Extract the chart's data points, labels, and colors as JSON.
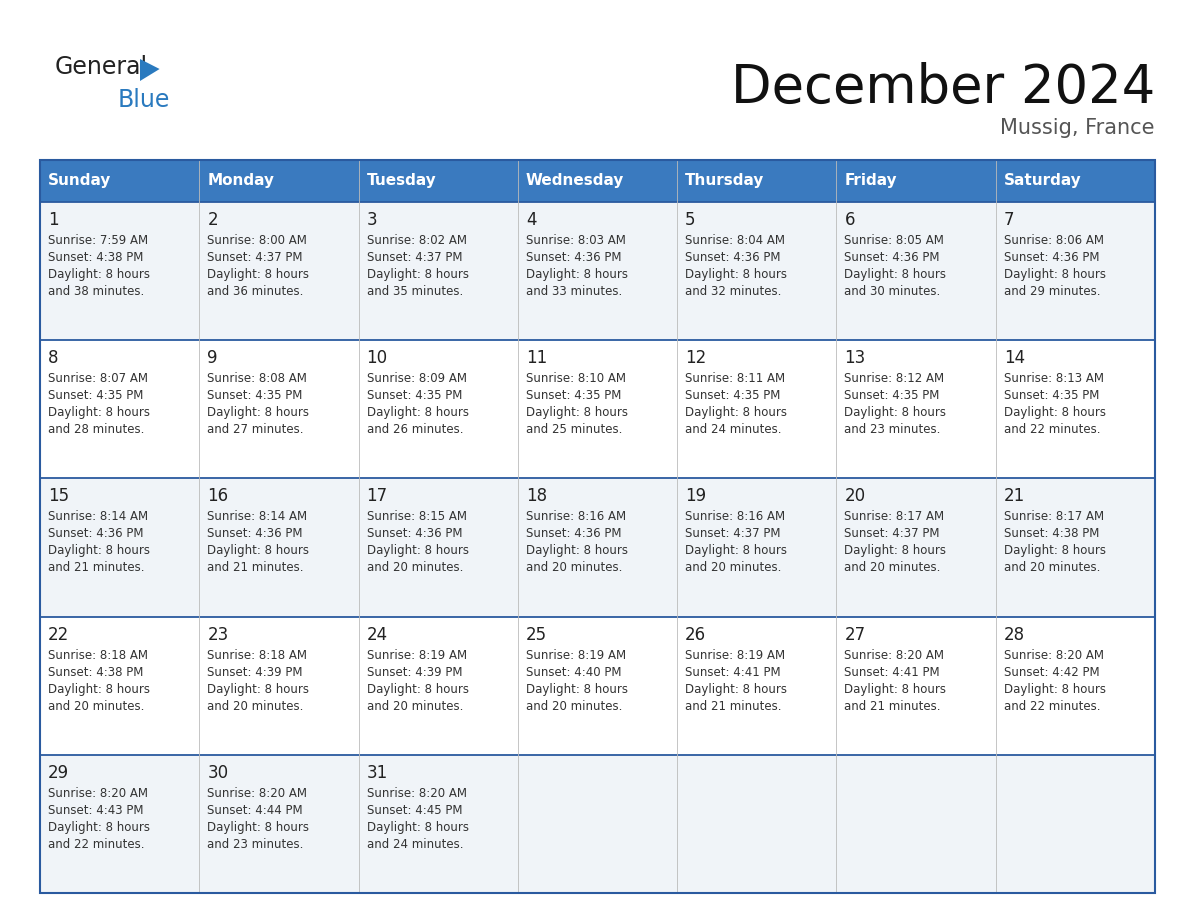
{
  "title": "December 2024",
  "subtitle": "Mussig, France",
  "header_color": "#3a7abf",
  "header_text_color": "#ffffff",
  "day_names": [
    "Sunday",
    "Monday",
    "Tuesday",
    "Wednesday",
    "Thursday",
    "Friday",
    "Saturday"
  ],
  "row_bg_colors": [
    "#f0f4f8",
    "#ffffff"
  ],
  "border_color": "#2a5a9f",
  "text_color": "#333333",
  "day_number_color": "#222222",
  "logo_color1": "#222222",
  "logo_color2": "#2a7abf",
  "calendar_data": [
    [
      {
        "day": 1,
        "sunrise": "7:59 AM",
        "sunset": "4:38 PM",
        "daylight_line1": "Daylight: 8 hours",
        "daylight_line2": "and 38 minutes."
      },
      {
        "day": 2,
        "sunrise": "8:00 AM",
        "sunset": "4:37 PM",
        "daylight_line1": "Daylight: 8 hours",
        "daylight_line2": "and 36 minutes."
      },
      {
        "day": 3,
        "sunrise": "8:02 AM",
        "sunset": "4:37 PM",
        "daylight_line1": "Daylight: 8 hours",
        "daylight_line2": "and 35 minutes."
      },
      {
        "day": 4,
        "sunrise": "8:03 AM",
        "sunset": "4:36 PM",
        "daylight_line1": "Daylight: 8 hours",
        "daylight_line2": "and 33 minutes."
      },
      {
        "day": 5,
        "sunrise": "8:04 AM",
        "sunset": "4:36 PM",
        "daylight_line1": "Daylight: 8 hours",
        "daylight_line2": "and 32 minutes."
      },
      {
        "day": 6,
        "sunrise": "8:05 AM",
        "sunset": "4:36 PM",
        "daylight_line1": "Daylight: 8 hours",
        "daylight_line2": "and 30 minutes."
      },
      {
        "day": 7,
        "sunrise": "8:06 AM",
        "sunset": "4:36 PM",
        "daylight_line1": "Daylight: 8 hours",
        "daylight_line2": "and 29 minutes."
      }
    ],
    [
      {
        "day": 8,
        "sunrise": "8:07 AM",
        "sunset": "4:35 PM",
        "daylight_line1": "Daylight: 8 hours",
        "daylight_line2": "and 28 minutes."
      },
      {
        "day": 9,
        "sunrise": "8:08 AM",
        "sunset": "4:35 PM",
        "daylight_line1": "Daylight: 8 hours",
        "daylight_line2": "and 27 minutes."
      },
      {
        "day": 10,
        "sunrise": "8:09 AM",
        "sunset": "4:35 PM",
        "daylight_line1": "Daylight: 8 hours",
        "daylight_line2": "and 26 minutes."
      },
      {
        "day": 11,
        "sunrise": "8:10 AM",
        "sunset": "4:35 PM",
        "daylight_line1": "Daylight: 8 hours",
        "daylight_line2": "and 25 minutes."
      },
      {
        "day": 12,
        "sunrise": "8:11 AM",
        "sunset": "4:35 PM",
        "daylight_line1": "Daylight: 8 hours",
        "daylight_line2": "and 24 minutes."
      },
      {
        "day": 13,
        "sunrise": "8:12 AM",
        "sunset": "4:35 PM",
        "daylight_line1": "Daylight: 8 hours",
        "daylight_line2": "and 23 minutes."
      },
      {
        "day": 14,
        "sunrise": "8:13 AM",
        "sunset": "4:35 PM",
        "daylight_line1": "Daylight: 8 hours",
        "daylight_line2": "and 22 minutes."
      }
    ],
    [
      {
        "day": 15,
        "sunrise": "8:14 AM",
        "sunset": "4:36 PM",
        "daylight_line1": "Daylight: 8 hours",
        "daylight_line2": "and 21 minutes."
      },
      {
        "day": 16,
        "sunrise": "8:14 AM",
        "sunset": "4:36 PM",
        "daylight_line1": "Daylight: 8 hours",
        "daylight_line2": "and 21 minutes."
      },
      {
        "day": 17,
        "sunrise": "8:15 AM",
        "sunset": "4:36 PM",
        "daylight_line1": "Daylight: 8 hours",
        "daylight_line2": "and 20 minutes."
      },
      {
        "day": 18,
        "sunrise": "8:16 AM",
        "sunset": "4:36 PM",
        "daylight_line1": "Daylight: 8 hours",
        "daylight_line2": "and 20 minutes."
      },
      {
        "day": 19,
        "sunrise": "8:16 AM",
        "sunset": "4:37 PM",
        "daylight_line1": "Daylight: 8 hours",
        "daylight_line2": "and 20 minutes."
      },
      {
        "day": 20,
        "sunrise": "8:17 AM",
        "sunset": "4:37 PM",
        "daylight_line1": "Daylight: 8 hours",
        "daylight_line2": "and 20 minutes."
      },
      {
        "day": 21,
        "sunrise": "8:17 AM",
        "sunset": "4:38 PM",
        "daylight_line1": "Daylight: 8 hours",
        "daylight_line2": "and 20 minutes."
      }
    ],
    [
      {
        "day": 22,
        "sunrise": "8:18 AM",
        "sunset": "4:38 PM",
        "daylight_line1": "Daylight: 8 hours",
        "daylight_line2": "and 20 minutes."
      },
      {
        "day": 23,
        "sunrise": "8:18 AM",
        "sunset": "4:39 PM",
        "daylight_line1": "Daylight: 8 hours",
        "daylight_line2": "and 20 minutes."
      },
      {
        "day": 24,
        "sunrise": "8:19 AM",
        "sunset": "4:39 PM",
        "daylight_line1": "Daylight: 8 hours",
        "daylight_line2": "and 20 minutes."
      },
      {
        "day": 25,
        "sunrise": "8:19 AM",
        "sunset": "4:40 PM",
        "daylight_line1": "Daylight: 8 hours",
        "daylight_line2": "and 20 minutes."
      },
      {
        "day": 26,
        "sunrise": "8:19 AM",
        "sunset": "4:41 PM",
        "daylight_line1": "Daylight: 8 hours",
        "daylight_line2": "and 21 minutes."
      },
      {
        "day": 27,
        "sunrise": "8:20 AM",
        "sunset": "4:41 PM",
        "daylight_line1": "Daylight: 8 hours",
        "daylight_line2": "and 21 minutes."
      },
      {
        "day": 28,
        "sunrise": "8:20 AM",
        "sunset": "4:42 PM",
        "daylight_line1": "Daylight: 8 hours",
        "daylight_line2": "and 22 minutes."
      }
    ],
    [
      {
        "day": 29,
        "sunrise": "8:20 AM",
        "sunset": "4:43 PM",
        "daylight_line1": "Daylight: 8 hours",
        "daylight_line2": "and 22 minutes."
      },
      {
        "day": 30,
        "sunrise": "8:20 AM",
        "sunset": "4:44 PM",
        "daylight_line1": "Daylight: 8 hours",
        "daylight_line2": "and 23 minutes."
      },
      {
        "day": 31,
        "sunrise": "8:20 AM",
        "sunset": "4:45 PM",
        "daylight_line1": "Daylight: 8 hours",
        "daylight_line2": "and 24 minutes."
      },
      null,
      null,
      null,
      null
    ]
  ]
}
